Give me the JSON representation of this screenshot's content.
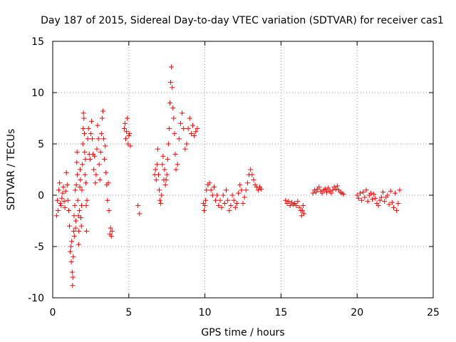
{
  "chart_data": {
    "type": "scatter",
    "title": "Day 187 of 2015, Sidereal Day-to-day VTEC variation (SDTVAR) for receiver cas1",
    "xlabel": "GPS time / hours",
    "ylabel": "SDTVAR / TECUs",
    "xlim": [
      0,
      25
    ],
    "ylim": [
      -10,
      15
    ],
    "x_ticks": [
      0,
      5,
      10,
      15,
      20,
      25
    ],
    "y_ticks": [
      -10,
      -5,
      0,
      5,
      10,
      15
    ],
    "x_tick_labels": [
      "0",
      "5",
      "10",
      "15",
      "20",
      "25"
    ],
    "y_tick_labels": [
      "-10",
      "-5",
      "0",
      "5",
      "10",
      "15"
    ],
    "grid": true,
    "marker": "+",
    "color": "#ff0000",
    "series": [
      {
        "name": "SDTVAR",
        "x": [
          0.25,
          0.3,
          0.35,
          0.4,
          0.45,
          0.5,
          0.55,
          0.6,
          0.65,
          0.7,
          0.75,
          0.8,
          0.85,
          0.9,
          0.95,
          1.0,
          1.05,
          1.1,
          1.15,
          1.2,
          1.22,
          1.25,
          1.28,
          1.3,
          1.32,
          1.35,
          1.38,
          1.4,
          1.42,
          1.45,
          1.48,
          1.5,
          1.52,
          1.55,
          1.58,
          1.6,
          1.62,
          1.65,
          1.68,
          1.7,
          1.72,
          1.75,
          1.78,
          1.8,
          1.82,
          1.85,
          1.88,
          1.9,
          1.92,
          1.95,
          1.98,
          2.0,
          2.02,
          2.05,
          2.08,
          2.1,
          2.12,
          2.15,
          2.18,
          2.2,
          2.22,
          2.25,
          2.3,
          2.35,
          2.4,
          2.45,
          2.5,
          2.55,
          2.6,
          2.65,
          2.7,
          2.75,
          2.8,
          2.85,
          2.9,
          2.95,
          3.0,
          3.05,
          3.1,
          3.15,
          3.2,
          3.25,
          3.3,
          3.35,
          3.4,
          3.45,
          3.5,
          3.55,
          3.6,
          3.65,
          3.7,
          3.75,
          3.8,
          3.85,
          3.9,
          4.7,
          4.75,
          4.8,
          4.85,
          4.9,
          4.95,
          5.0,
          5.05,
          5.1,
          5.6,
          5.7,
          6.7,
          6.75,
          6.8,
          6.85,
          6.9,
          6.95,
          7.0,
          7.05,
          7.1,
          7.15,
          7.2,
          7.25,
          7.3,
          7.35,
          7.4,
          7.45,
          7.5,
          7.55,
          7.6,
          7.65,
          7.7,
          7.75,
          7.8,
          7.85,
          7.9,
          7.95,
          8.0,
          8.05,
          8.1,
          8.2,
          8.3,
          8.4,
          8.5,
          8.6,
          8.7,
          8.8,
          8.9,
          9.0,
          9.1,
          9.2,
          9.3,
          9.4,
          9.5,
          9.9,
          9.95,
          10.0,
          10.05,
          10.1,
          10.2,
          10.3,
          10.4,
          10.5,
          10.6,
          10.7,
          10.8,
          10.9,
          11.0,
          11.1,
          11.2,
          11.3,
          11.4,
          11.5,
          11.6,
          11.7,
          11.8,
          11.9,
          12.0,
          12.1,
          12.2,
          12.3,
          12.4,
          12.5,
          12.6,
          12.7,
          12.8,
          12.9,
          13.0,
          13.1,
          13.2,
          13.3,
          13.4,
          13.5,
          13.6,
          13.7,
          15.3,
          15.4,
          15.5,
          15.6,
          15.7,
          15.8,
          15.9,
          16.0,
          16.1,
          16.2,
          16.3,
          16.35,
          16.4,
          16.45,
          16.5,
          17.1,
          17.2,
          17.3,
          17.4,
          17.5,
          17.6,
          17.7,
          17.8,
          17.9,
          18.0,
          18.1,
          18.2,
          18.3,
          18.4,
          18.5,
          18.6,
          18.7,
          18.8,
          18.9,
          19.0,
          19.1,
          20.0,
          20.1,
          20.2,
          20.3,
          20.4,
          20.5,
          20.6,
          20.7,
          20.8,
          20.9,
          21.0,
          21.1,
          21.2,
          21.3,
          21.4,
          21.5,
          21.6,
          21.7,
          21.8,
          21.9,
          22.0,
          22.1,
          22.2,
          22.3,
          22.4,
          22.5,
          22.6,
          22.7,
          22.8
        ],
        "y": [
          -2.0,
          -0.5,
          -1.5,
          0.5,
          1.2,
          -0.8,
          -1.0,
          -0.3,
          0.2,
          0.8,
          -0.6,
          -1.2,
          0.4,
          2.2,
          1.0,
          -0.5,
          -1.5,
          -3.0,
          -5.5,
          -5.0,
          -6.5,
          -4.5,
          -7.5,
          -8.8,
          -8.0,
          -6.0,
          -3.5,
          -2.0,
          -4.0,
          -1.0,
          0.5,
          -3.2,
          -2.5,
          1.0,
          3.2,
          4.2,
          2.0,
          -0.5,
          -2.0,
          -4.8,
          -3.5,
          -1.5,
          0.8,
          2.5,
          1.5,
          -2.2,
          -3.0,
          -1.0,
          0.5,
          3.0,
          5.0,
          6.5,
          8.0,
          7.5,
          6.0,
          4.2,
          2.0,
          3.5,
          1.2,
          -1.0,
          -3.5,
          -0.5,
          5.5,
          6.5,
          4.0,
          3.5,
          6.0,
          7.2,
          5.5,
          4.0,
          2.5,
          3.8,
          1.2,
          2.0,
          4.5,
          6.8,
          5.5,
          3.0,
          1.5,
          4.2,
          6.0,
          7.5,
          8.2,
          5.5,
          3.5,
          4.8,
          2.2,
          1.0,
          -0.5,
          1.2,
          -1.5,
          -3.8,
          -3.2,
          -4.0,
          -3.5,
          6.5,
          7.0,
          5.5,
          6.2,
          7.5,
          5.0,
          5.8,
          6.0,
          4.8,
          -1.0,
          -1.8,
          2.0,
          2.5,
          1.5,
          3.0,
          4.5,
          2.0,
          0.5,
          -0.5,
          -0.8,
          0.0,
          3.0,
          3.8,
          1.5,
          2.5,
          1.0,
          1.5,
          2.0,
          3.5,
          5.0,
          6.5,
          9.0,
          11.0,
          12.5,
          10.5,
          8.5,
          7.5,
          6.0,
          4.0,
          2.5,
          3.0,
          5.5,
          7.0,
          8.0,
          6.5,
          4.5,
          5.0,
          6.5,
          7.5,
          6.0,
          6.8,
          5.8,
          6.2,
          6.5,
          -0.8,
          -1.5,
          -1.0,
          -0.5,
          0.5,
          1.0,
          1.2,
          0.5,
          0.0,
          0.8,
          -0.5,
          0.0,
          -1.0,
          -0.5,
          -1.2,
          0.0,
          -0.8,
          0.5,
          -0.5,
          -1.5,
          -1.0,
          0.0,
          -0.5,
          -1.2,
          -0.8,
          0.2,
          1.0,
          0.5,
          -0.8,
          -0.2,
          0.5,
          1.2,
          2.0,
          2.5,
          2.0,
          1.5,
          1.0,
          0.8,
          0.5,
          0.8,
          0.6,
          -0.5,
          -0.8,
          -0.6,
          -1.0,
          -0.7,
          -0.9,
          -0.8,
          -1.0,
          -0.6,
          -1.2,
          -1.5,
          -2.0,
          -1.5,
          -1.0,
          -1.8,
          0.2,
          0.5,
          0.3,
          0.6,
          0.8,
          0.4,
          0.2,
          0.5,
          0.6,
          0.3,
          0.7,
          0.4,
          0.2,
          0.5,
          0.8,
          0.6,
          0.9,
          0.5,
          0.3,
          0.2,
          0.1,
          0.0,
          -0.3,
          0.2,
          -0.5,
          0.3,
          -0.2,
          0.5,
          -0.6,
          0.0,
          0.2,
          -0.4,
          0.1,
          -0.3,
          -0.8,
          -1.0,
          -0.5,
          -0.2,
          0.3,
          -0.6,
          -0.2,
          0.0,
          -0.9,
          0.4,
          -0.7,
          -1.2,
          0.2,
          -1.5,
          -0.8,
          0.5
        ]
      }
    ]
  }
}
